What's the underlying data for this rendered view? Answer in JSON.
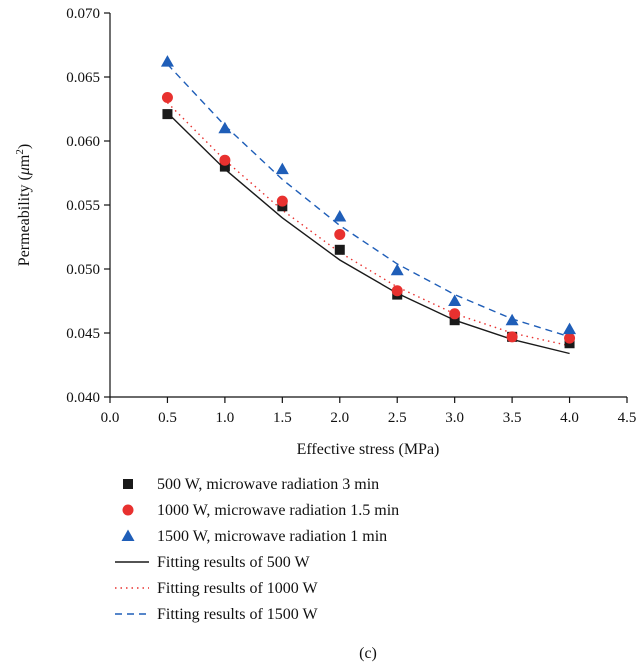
{
  "chart_data": {
    "type": "scatter",
    "title": "",
    "xlabel": "Effective stress (MPa)",
    "ylabel_prefix": "Permeability (",
    "ylabel_mu": "μ",
    "ylabel_unit": "m",
    "ylabel_sup": "2",
    "ylabel_suffix": ")",
    "xlim": [
      0.0,
      4.5
    ],
    "ylim": [
      0.04,
      0.07
    ],
    "x_ticks": [
      "0.0",
      "0.5",
      "1.0",
      "1.5",
      "2.0",
      "2.5",
      "3.0",
      "3.5",
      "4.0",
      "4.5"
    ],
    "y_ticks": [
      "0.040",
      "0.045",
      "0.050",
      "0.055",
      "0.060",
      "0.065",
      "0.070"
    ],
    "grid": false,
    "legend_position": "bottom",
    "x": [
      0.5,
      1.0,
      1.5,
      2.0,
      2.5,
      3.0,
      3.5,
      4.0
    ],
    "series": [
      {
        "name": "500 W, microwave radiation 3 min",
        "marker": "square",
        "color": "#1a1a1a",
        "values": [
          0.0621,
          0.058,
          0.0549,
          0.0515,
          0.048,
          0.046,
          0.0447,
          0.0442
        ]
      },
      {
        "name": "1000 W, microwave radiation 1.5 min",
        "marker": "circle",
        "color": "#e8312f",
        "values": [
          0.0634,
          0.0585,
          0.0553,
          0.0527,
          0.0483,
          0.0465,
          0.0447,
          0.0446
        ]
      },
      {
        "name": "1500 W, microwave radiation 1 min",
        "marker": "triangle",
        "color": "#1f5eb8",
        "values": [
          0.0662,
          0.061,
          0.0578,
          0.0541,
          0.0499,
          0.0475,
          0.046,
          0.0453
        ]
      }
    ],
    "fits": [
      {
        "name": "Fitting results of 500 W",
        "style": "solid",
        "color": "#1a1a1a",
        "values": [
          0.0622,
          0.0578,
          0.054,
          0.0507,
          0.0481,
          0.046,
          0.0445,
          0.0434
        ]
      },
      {
        "name": "Fitting results of 1000 W",
        "style": "dotted",
        "color": "#e8312f",
        "values": [
          0.063,
          0.0585,
          0.0546,
          0.0513,
          0.0486,
          0.0465,
          0.045,
          0.044
        ]
      },
      {
        "name": "Fitting results of 1500 W",
        "style": "dashed",
        "color": "#1f5eb8",
        "values": [
          0.066,
          0.0612,
          0.057,
          0.0534,
          0.0504,
          0.048,
          0.0461,
          0.0447
        ]
      }
    ]
  },
  "caption": "(c)"
}
